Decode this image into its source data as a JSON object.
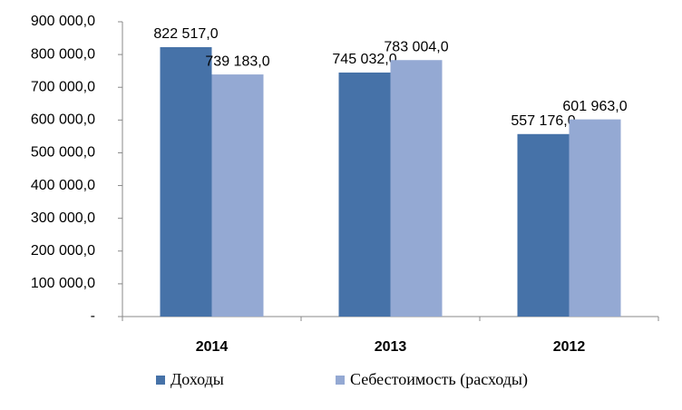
{
  "chart_data": {
    "type": "bar",
    "categories": [
      "2014",
      "2013",
      "2012"
    ],
    "series": [
      {
        "name": "Доходы",
        "color": "#4672a8",
        "values": [
          822517,
          745032,
          557176
        ],
        "value_labels": [
          "822 517,0",
          "745 032,0",
          "557 176,0"
        ]
      },
      {
        "name": "Себестоимость (расходы)",
        "color": "#94a9d3",
        "values": [
          739183,
          783004,
          601963
        ],
        "value_labels": [
          "739 183,0",
          "783 004,0",
          "601 963,0"
        ]
      }
    ],
    "ylim": [
      0,
      900000
    ],
    "yticks": [
      {
        "value": 0,
        "label": "-"
      },
      {
        "value": 100000,
        "label": "100 000,0"
      },
      {
        "value": 200000,
        "label": "200 000,0"
      },
      {
        "value": 300000,
        "label": "300 000,0"
      },
      {
        "value": 400000,
        "label": "400 000,0"
      },
      {
        "value": 500000,
        "label": "500 000,0"
      },
      {
        "value": 600000,
        "label": "600 000,0"
      },
      {
        "value": 700000,
        "label": "700 000,0"
      },
      {
        "value": 800000,
        "label": "800 000,0"
      },
      {
        "value": 900000,
        "label": "900 000,0"
      }
    ],
    "grid": false,
    "legend": "bottom"
  }
}
